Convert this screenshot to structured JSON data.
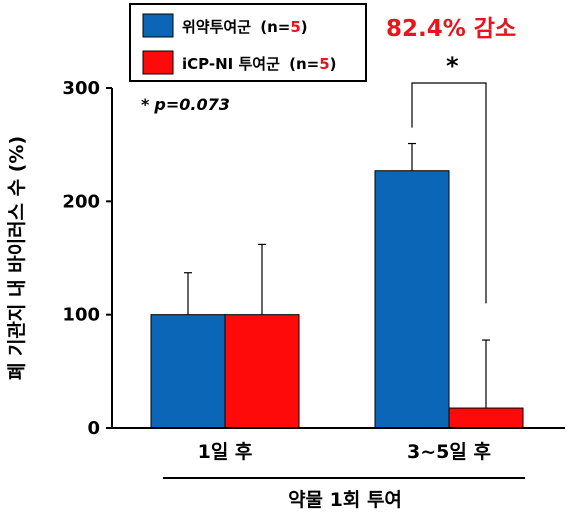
{
  "chart_data": {
    "type": "bar",
    "title": "",
    "ylabel": "폐 기관지 내 바이러스 수 (%)",
    "xlabel": "약물 1회 투여",
    "categories": [
      "1일 후",
      "3~5일 후"
    ],
    "ylim": [
      0,
      300
    ],
    "yticks": [
      0,
      100,
      200,
      300
    ],
    "grid": false,
    "legend_position": "top-left",
    "series": [
      {
        "name": "위약투여군",
        "n_label": "(n=5)",
        "n_open": "(n=",
        "n_value": "5",
        "n_close": ")",
        "color": "#0b66b8",
        "values": [
          100,
          227
        ],
        "error": [
          37,
          24
        ]
      },
      {
        "name": "iCP-NI 투여군",
        "n_label": "(n=5)",
        "n_open": "(n=",
        "n_value": "5",
        "n_close": ")",
        "color": "#ff0a0a",
        "values": [
          100,
          17.6
        ],
        "error": [
          62,
          60
        ]
      }
    ],
    "annotations": {
      "reduction": "82.4% 감소",
      "significance_star": "*",
      "p_star": "*",
      "p_text": "p=0.073"
    }
  }
}
